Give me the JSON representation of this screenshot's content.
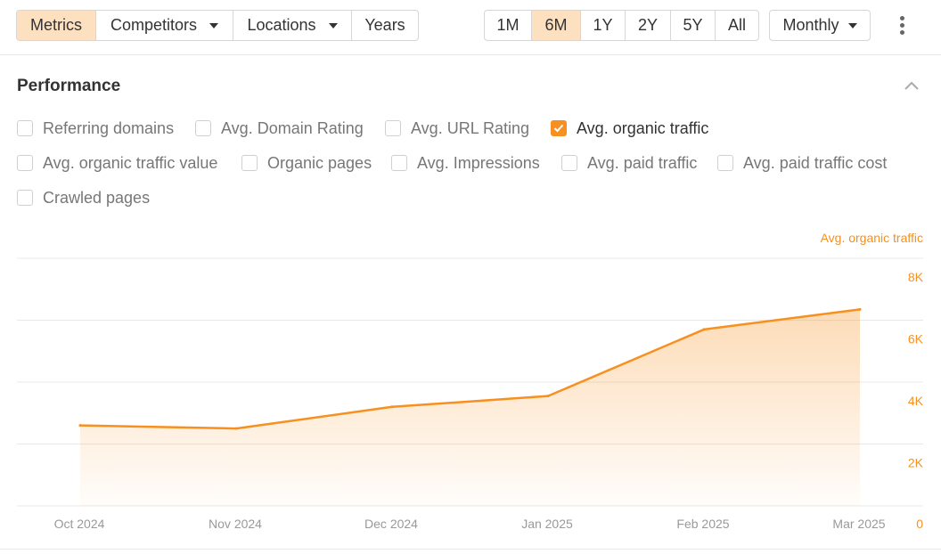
{
  "toolbar": {
    "tabs": [
      {
        "label": "Metrics",
        "active": true,
        "dropdown": false
      },
      {
        "label": "Competitors",
        "active": false,
        "dropdown": true
      },
      {
        "label": "Locations",
        "active": false,
        "dropdown": true
      },
      {
        "label": "Years",
        "active": false,
        "dropdown": false
      }
    ],
    "ranges": [
      {
        "label": "1M",
        "active": false
      },
      {
        "label": "6M",
        "active": true
      },
      {
        "label": "1Y",
        "active": false
      },
      {
        "label": "2Y",
        "active": false
      },
      {
        "label": "5Y",
        "active": false
      },
      {
        "label": "All",
        "active": false
      }
    ],
    "interval": "Monthly",
    "more_icon": "more-vertical-icon"
  },
  "performance": {
    "title": "Performance",
    "collapse_icon": "chevron-up-icon",
    "metrics": [
      {
        "label": "Referring domains",
        "checked": false
      },
      {
        "label": "Avg. Domain Rating",
        "checked": false
      },
      {
        "label": "Avg. URL Rating",
        "checked": false
      },
      {
        "label": "Avg. organic traffic",
        "checked": true
      },
      {
        "label": "Avg. organic traffic value",
        "checked": false
      },
      {
        "label": "Organic pages",
        "checked": false
      },
      {
        "label": "Avg. Impressions",
        "checked": false
      },
      {
        "label": "Avg. paid traffic",
        "checked": false
      },
      {
        "label": "Avg. paid traffic cost",
        "checked": false
      },
      {
        "label": "Crawled pages",
        "checked": false
      }
    ]
  },
  "colors": {
    "accent": "#f7901e",
    "active_bg": "#fde0bf",
    "grid": "#e8e8e8",
    "muted_text": "#999999"
  },
  "chart_data": {
    "type": "area",
    "x": [
      "Oct 2024",
      "Nov 2024",
      "Dec 2024",
      "Jan 2025",
      "Feb 2025",
      "Mar 2025"
    ],
    "series": [
      {
        "name": "Avg. organic traffic",
        "values": [
          2600,
          2500,
          3200,
          3550,
          5700,
          6350
        ]
      }
    ],
    "ylim": [
      0,
      8000
    ],
    "yticks": [
      "0",
      "2K",
      "4K",
      "6K",
      "8K"
    ],
    "ytick_values": [
      0,
      2000,
      4000,
      6000,
      8000
    ],
    "y_axis_side": "right",
    "grid": true,
    "legend": "top-right"
  }
}
